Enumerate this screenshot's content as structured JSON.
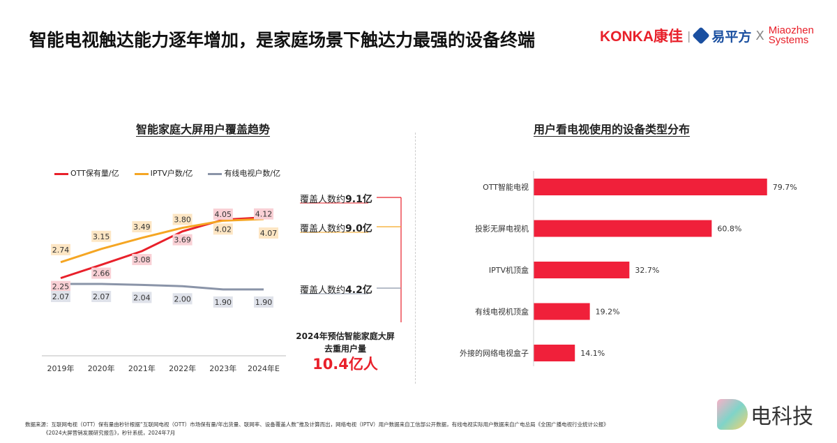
{
  "title": "智能电视触达能力逐年增加，是家庭场景下触达力最强的设备终端",
  "logo": {
    "konka": "KONKA康佳",
    "ypf": "易平方",
    "x": "X",
    "miaozhen": "Miaozhen Systems"
  },
  "colors": {
    "ott": "#e8202a",
    "iptv": "#f5a623",
    "cable": "#8a94a8",
    "bar": "#f0203a"
  },
  "annotations": [
    {
      "prefix": "覆盖人数约",
      "value": "9.1亿",
      "color": "#e8202a"
    },
    {
      "prefix": "覆盖人数约",
      "value": "9.0亿",
      "color": "#b8861a"
    },
    {
      "prefix": "覆盖人数约",
      "value": "4.2亿",
      "color": "#3a4a6a"
    }
  ],
  "summary": {
    "line1": "2024年预估智能家庭大屏",
    "line2": "去重用户量",
    "value": "10.4亿人"
  },
  "footer": {
    "line1": "数据来源：互联网电视（OTT）保有量由秒针根据“互联网电视（OTT）市场保有量/年出货量、联网率、设备覆盖人数”推及计算而出，网络电视（IPTV）用户数据来自工信部公开数据，有线电视实际用户数据来自广电总局《全国广播电视行业统计公报》",
    "line2": "《2024大屏营销发展研究报告》，秒针系统，2024年7月"
  },
  "watermark": "电科技",
  "chart_data": [
    {
      "type": "line",
      "title": "智能家庭大屏用户覆盖趋势",
      "categories": [
        "2019年",
        "2020年",
        "2021年",
        "2022年",
        "2023年",
        "2024年E"
      ],
      "series": [
        {
          "name": "OTT保有量/亿",
          "values": [
            2.25,
            2.66,
            3.08,
            3.69,
            4.05,
            4.12
          ]
        },
        {
          "name": "IPTV户数/亿",
          "values": [
            2.74,
            3.15,
            3.49,
            3.8,
            4.02,
            4.07
          ]
        },
        {
          "name": "有线电视户数/亿",
          "values": [
            2.07,
            2.07,
            2.04,
            2.0,
            1.9,
            1.9
          ]
        }
      ],
      "legend": "top"
    },
    {
      "type": "bar",
      "orientation": "horizontal",
      "title": "用户看电视使用的设备类型分布",
      "categories": [
        "OTT智能电视",
        "投影无屏电视机",
        "IPTV机顶盒",
        "有线电视机顶盒",
        "外接的网络电视盒子"
      ],
      "values": [
        79.7,
        60.8,
        32.7,
        19.2,
        14.1
      ],
      "labels": [
        "79.7%",
        "60.8%",
        "32.7%",
        "19.2%",
        "14.1%"
      ]
    }
  ]
}
